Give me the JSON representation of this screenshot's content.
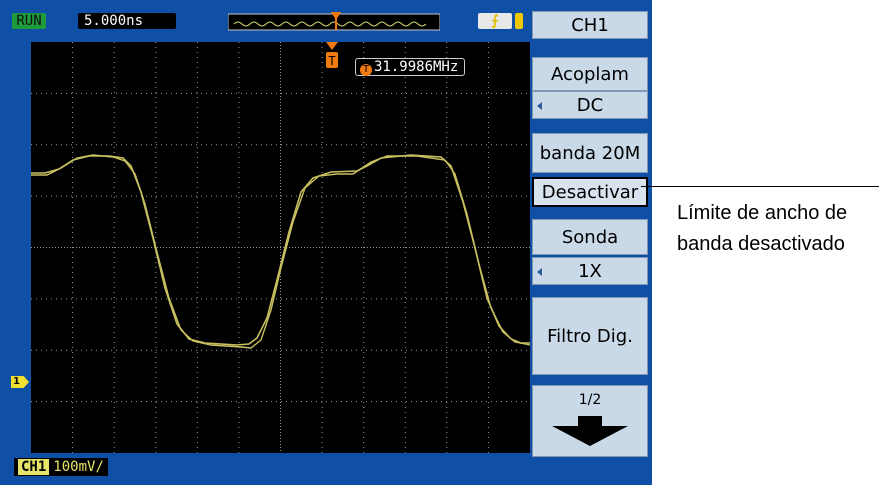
{
  "status": {
    "run_label": "RUN",
    "timebase": "5.000ns",
    "trigger_slope_icon": "rising-edge-icon"
  },
  "trigger": {
    "marker_label": "T",
    "frequency": "31.9986MHz"
  },
  "channel": {
    "marker_label": "1",
    "name": "CH1",
    "scale": "100mV/"
  },
  "menu": {
    "title": "CH1",
    "coupling_label": "Acoplam",
    "coupling_value": "DC",
    "bw_label": "banda 20M",
    "bw_value": "Desactivar",
    "probe_label": "Sonda",
    "probe_value": "1X",
    "filter_label": "Filtro Dig.",
    "page": "1/2",
    "next_icon": "down-arrow-icon"
  },
  "callout": {
    "line1": "Límite de ancho de",
    "line2": "banda desactivado"
  },
  "colors": {
    "trace": "#c8c060",
    "bezel": "#0f4fa5",
    "menu": "#c9d9e8",
    "trigger": "#f07a10"
  }
}
